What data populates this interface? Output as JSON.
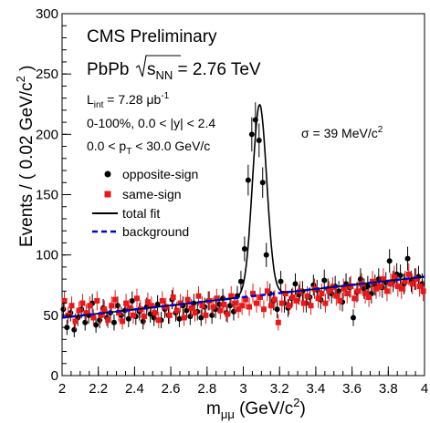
{
  "chart_data": {
    "type": "scatter",
    "title_lines": {
      "experiment": "CMS Preliminary",
      "system": "PbPb",
      "sqrt_s": "s",
      "sqrt_s_sub": "NN",
      "energy": " = 2.76 TeV",
      "lumi_main": "L",
      "lumi_sub": "int",
      "lumi_value": " = 7.28 μb",
      "lumi_exp": "-1",
      "centrality": "0-100%, 0.0 < |y| < 2.4",
      "pt_pre": "0.0 < p",
      "pt_sub": "T",
      "pt_post": " < 30.0 GeV/c",
      "sigma_text": "σ = 39 MeV/c",
      "sigma_exp": "2"
    },
    "xlabel": {
      "main": "m",
      "sub": "μμ",
      "unit": " (GeV/c",
      "exp": "2",
      "close": ")"
    },
    "ylabel": {
      "main": "Events / ( 0.02 GeV/c",
      "exp": "2",
      "close": " )"
    },
    "xlim": [
      2.0,
      4.0
    ],
    "ylim": [
      0,
      300
    ],
    "xticks": [
      2.0,
      2.2,
      2.4,
      2.6,
      2.8,
      3.0,
      3.2,
      3.4,
      3.6,
      3.8,
      4.0
    ],
    "xtick_labels": [
      "2",
      "2.2",
      "2.4",
      "2.6",
      "2.8",
      "3",
      "3.2",
      "3.4",
      "3.6",
      "3.8",
      "4"
    ],
    "yticks": [
      0,
      50,
      100,
      150,
      200,
      250,
      300
    ],
    "ytick_labels": [
      "0",
      "50",
      "100",
      "150",
      "200",
      "250",
      "300"
    ],
    "legend": [
      {
        "label": "opposite-sign",
        "kind": "marker",
        "color": "#000000",
        "shape": "circle"
      },
      {
        "label": "same-sign",
        "kind": "marker",
        "color": "#e41a1c",
        "shape": "square"
      },
      {
        "label": "total fit",
        "kind": "line",
        "color": "#000000",
        "dash": "solid"
      },
      {
        "label": "background",
        "kind": "line",
        "color": "#0000cc",
        "dash": "dashed"
      }
    ],
    "series": [
      {
        "name": "opposite-sign",
        "color": "#000000",
        "marker": "circle",
        "x": [
          2.01,
          2.03,
          2.05,
          2.07,
          2.09,
          2.11,
          2.13,
          2.15,
          2.17,
          2.19,
          2.21,
          2.23,
          2.25,
          2.27,
          2.29,
          2.31,
          2.33,
          2.35,
          2.37,
          2.39,
          2.41,
          2.43,
          2.45,
          2.47,
          2.49,
          2.51,
          2.53,
          2.55,
          2.57,
          2.59,
          2.61,
          2.63,
          2.65,
          2.67,
          2.69,
          2.71,
          2.73,
          2.75,
          2.77,
          2.79,
          2.81,
          2.83,
          2.85,
          2.87,
          2.89,
          2.91,
          2.93,
          2.95,
          2.97,
          2.99,
          3.01,
          3.03,
          3.05,
          3.07,
          3.09,
          3.11,
          3.13,
          3.15,
          3.17,
          3.19,
          3.21,
          3.23,
          3.25,
          3.27,
          3.29,
          3.31,
          3.33,
          3.35,
          3.37,
          3.39,
          3.41,
          3.43,
          3.45,
          3.47,
          3.49,
          3.51,
          3.53,
          3.55,
          3.57,
          3.59,
          3.61,
          3.63,
          3.65,
          3.67,
          3.69,
          3.71,
          3.73,
          3.75,
          3.77,
          3.79,
          3.81,
          3.83,
          3.85,
          3.87,
          3.89,
          3.91,
          3.93,
          3.95,
          3.97,
          3.99
        ],
        "y": [
          55,
          40,
          52,
          38,
          48,
          55,
          44,
          50,
          60,
          42,
          46,
          56,
          48,
          52,
          44,
          58,
          50,
          54,
          47,
          62,
          49,
          53,
          45,
          57,
          51,
          48,
          59,
          46,
          55,
          50,
          63,
          52,
          47,
          58,
          54,
          49,
          60,
          53,
          48,
          57,
          62,
          50,
          55,
          59,
          64,
          52,
          58,
          53,
          66,
          78,
          105,
          162,
          200,
          212,
          195,
          160,
          100,
          68,
          62,
          55,
          78,
          60,
          56,
          64,
          76,
          67,
          70,
          60,
          65,
          75,
          71,
          63,
          79,
          72,
          68,
          74,
          70,
          61,
          76,
          73,
          48,
          69,
          80,
          72,
          74,
          68,
          75,
          80,
          73,
          77,
          95,
          78,
          84,
          83,
          76,
          97,
          78,
          80,
          82,
          76
        ]
      },
      {
        "name": "same-sign",
        "color": "#e41a1c",
        "marker": "square",
        "x": [
          2.01,
          2.03,
          2.05,
          2.07,
          2.09,
          2.11,
          2.13,
          2.15,
          2.17,
          2.19,
          2.21,
          2.23,
          2.25,
          2.27,
          2.29,
          2.31,
          2.33,
          2.35,
          2.37,
          2.39,
          2.41,
          2.43,
          2.45,
          2.47,
          2.49,
          2.51,
          2.53,
          2.55,
          2.57,
          2.59,
          2.61,
          2.63,
          2.65,
          2.67,
          2.69,
          2.71,
          2.73,
          2.75,
          2.77,
          2.79,
          2.81,
          2.83,
          2.85,
          2.87,
          2.89,
          2.91,
          2.93,
          2.95,
          2.97,
          2.99,
          3.01,
          3.03,
          3.05,
          3.07,
          3.09,
          3.11,
          3.13,
          3.15,
          3.17,
          3.19,
          3.21,
          3.23,
          3.25,
          3.27,
          3.29,
          3.31,
          3.33,
          3.35,
          3.37,
          3.39,
          3.41,
          3.43,
          3.45,
          3.47,
          3.49,
          3.51,
          3.53,
          3.55,
          3.57,
          3.59,
          3.61,
          3.63,
          3.65,
          3.67,
          3.69,
          3.71,
          3.73,
          3.75,
          3.77,
          3.79,
          3.81,
          3.83,
          3.85,
          3.87,
          3.89,
          3.91,
          3.93,
          3.95,
          3.97,
          3.99
        ],
        "y": [
          62,
          50,
          58,
          45,
          54,
          60,
          52,
          58,
          48,
          62,
          50,
          55,
          46,
          58,
          63,
          52,
          45,
          60,
          56,
          50,
          64,
          55,
          49,
          61,
          58,
          52,
          46,
          62,
          57,
          50,
          65,
          54,
          60,
          48,
          63,
          56,
          52,
          66,
          58,
          50,
          62,
          57,
          64,
          54,
          59,
          51,
          66,
          60,
          55,
          58,
          63,
          57,
          68,
          60,
          65,
          55,
          70,
          58,
          63,
          44,
          60,
          68,
          58,
          65,
          62,
          70,
          60,
          66,
          58,
          72,
          64,
          68,
          60,
          70,
          73,
          66,
          62,
          72,
          68,
          74,
          64,
          70,
          76,
          68,
          65,
          78,
          72,
          74,
          80,
          70,
          76,
          82,
          74,
          72,
          78,
          84,
          76,
          80,
          74,
          70
        ]
      }
    ],
    "fits": [
      {
        "name": "total fit",
        "color": "#000000",
        "dash": "solid",
        "bkg_a": 48,
        "bkg_b": 17,
        "peak_amp": 158,
        "peak_mean": 3.09,
        "peak_sigma": 0.039
      },
      {
        "name": "background",
        "color": "#0000cc",
        "dash": "dashed",
        "bkg_a": 48,
        "bkg_b": 17
      }
    ],
    "error_bar_scale": 1.0,
    "grid": false
  }
}
